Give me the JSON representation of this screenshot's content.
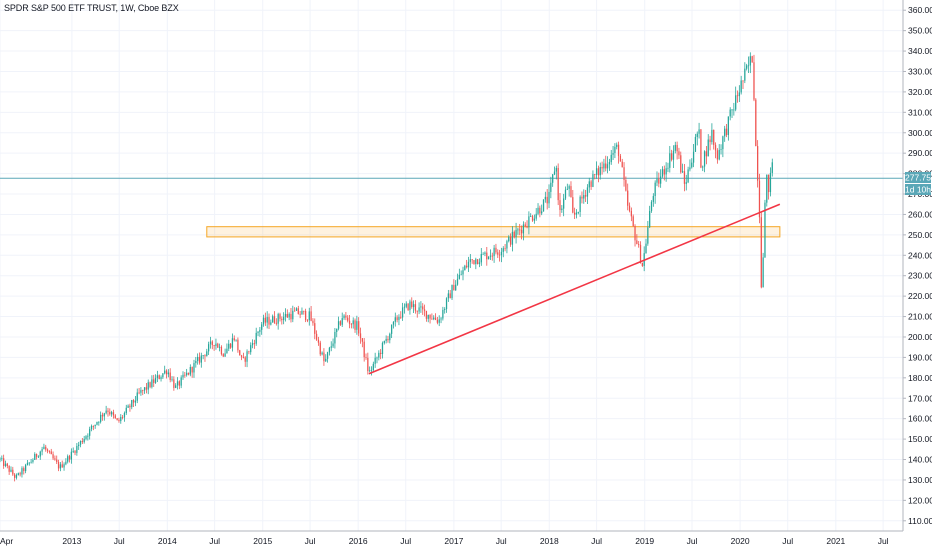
{
  "header": {
    "title": "SPDR S&P 500 ETF TRUST, 1W, Cboe BZX"
  },
  "price_badge": {
    "price": "277.75",
    "countdown": "1d 10h"
  },
  "chart_data": {
    "type": "candlestick",
    "title": "SPDR S&P 500 ETF TRUST, 1W, Cboe BZX",
    "x_range": [
      "2012-04-01",
      "2021-09-15"
    ],
    "ylim": [
      105,
      365
    ],
    "y_ticks": [
      "110.00",
      "120.00",
      "130.00",
      "140.00",
      "150.00",
      "160.00",
      "170.00",
      "180.00",
      "190.00",
      "200.00",
      "210.00",
      "220.00",
      "230.00",
      "240.00",
      "250.00",
      "260.00",
      "270.00",
      "280.00",
      "290.00",
      "300.00",
      "310.00",
      "320.00",
      "330.00",
      "340.00",
      "350.00",
      "360.00"
    ],
    "x_ticks": [
      {
        "date": "2012-04-01",
        "label": "Apr"
      },
      {
        "date": "2013-01-01",
        "label": "2013"
      },
      {
        "date": "2013-07-01",
        "label": "Jul"
      },
      {
        "date": "2014-01-01",
        "label": "2014"
      },
      {
        "date": "2014-07-01",
        "label": "Jul"
      },
      {
        "date": "2015-01-01",
        "label": "2015"
      },
      {
        "date": "2015-07-01",
        "label": "Jul"
      },
      {
        "date": "2016-01-01",
        "label": "2016"
      },
      {
        "date": "2016-07-01",
        "label": "Jul"
      },
      {
        "date": "2017-01-01",
        "label": "2017"
      },
      {
        "date": "2017-07-01",
        "label": "Jul"
      },
      {
        "date": "2018-01-01",
        "label": "2018"
      },
      {
        "date": "2018-07-01",
        "label": "Jul"
      },
      {
        "date": "2019-01-01",
        "label": "2019"
      },
      {
        "date": "2019-07-01",
        "label": "Jul"
      },
      {
        "date": "2020-01-01",
        "label": "2020"
      },
      {
        "date": "2020-07-01",
        "label": "Jul"
      },
      {
        "date": "2021-01-01",
        "label": "2021"
      },
      {
        "date": "2021-07-01",
        "label": "Jul"
      }
    ],
    "price_path": [
      [
        "2012-04-01",
        140
      ],
      [
        "2012-06-01",
        131
      ],
      [
        "2012-09-15",
        146
      ],
      [
        "2012-11-15",
        136
      ],
      [
        "2013-01-01",
        143
      ],
      [
        "2013-05-15",
        165
      ],
      [
        "2013-06-25",
        158
      ],
      [
        "2013-09-15",
        172
      ],
      [
        "2013-12-31",
        184
      ],
      [
        "2014-02-01",
        175
      ],
      [
        "2014-07-01",
        198
      ],
      [
        "2014-08-05",
        192
      ],
      [
        "2014-09-15",
        200
      ],
      [
        "2014-10-15",
        187
      ],
      [
        "2014-12-31",
        207
      ],
      [
        "2015-05-15",
        212
      ],
      [
        "2015-07-01",
        210
      ],
      [
        "2015-08-25",
        187
      ],
      [
        "2015-11-01",
        210
      ],
      [
        "2015-12-31",
        205
      ],
      [
        "2016-02-11",
        182
      ],
      [
        "2016-06-01",
        210
      ],
      [
        "2016-07-15",
        216
      ],
      [
        "2016-11-04",
        208
      ],
      [
        "2016-12-31",
        225
      ],
      [
        "2017-03-01",
        237
      ],
      [
        "2017-07-01",
        243
      ],
      [
        "2017-12-31",
        268
      ],
      [
        "2018-01-26",
        286
      ],
      [
        "2018-02-09",
        260
      ],
      [
        "2018-03-15",
        275
      ],
      [
        "2018-04-02",
        258
      ],
      [
        "2018-06-01",
        275
      ],
      [
        "2018-09-21",
        293
      ],
      [
        "2018-10-26",
        265
      ],
      [
        "2018-12-24",
        235
      ],
      [
        "2019-01-31",
        270
      ],
      [
        "2019-04-30",
        294
      ],
      [
        "2019-06-03",
        274
      ],
      [
        "2019-07-26",
        302
      ],
      [
        "2019-08-05",
        284
      ],
      [
        "2019-09-15",
        300
      ],
      [
        "2019-10-03",
        288
      ],
      [
        "2019-12-31",
        322
      ],
      [
        "2020-02-19",
        338
      ],
      [
        "2020-02-28",
        297
      ],
      [
        "2020-03-13",
        270
      ],
      [
        "2020-03-23",
        222
      ],
      [
        "2020-04-09",
        278
      ],
      [
        "2020-04-21",
        272
      ],
      [
        "2020-05-08",
        292
      ]
    ],
    "annotations": [
      {
        "type": "trendline",
        "color": "#f23645",
        "from": [
          "2016-02-11",
          182
        ],
        "to": [
          "2020-06-01",
          265
        ]
      },
      {
        "type": "zone",
        "color": "#f5a623",
        "from_date": "2014-06-01",
        "to_date": "2020-06-01",
        "y_low": 249,
        "y_high": 254
      },
      {
        "type": "price_line",
        "value": 277.75,
        "color": "#5aa7b7"
      }
    ],
    "colors": {
      "up": "#26a69a",
      "down": "#ef5350",
      "trendline": "#f23645",
      "zone": "#f5a623",
      "price_line": "#5aa7b7"
    },
    "grid": true,
    "y_axis_side": "right"
  }
}
